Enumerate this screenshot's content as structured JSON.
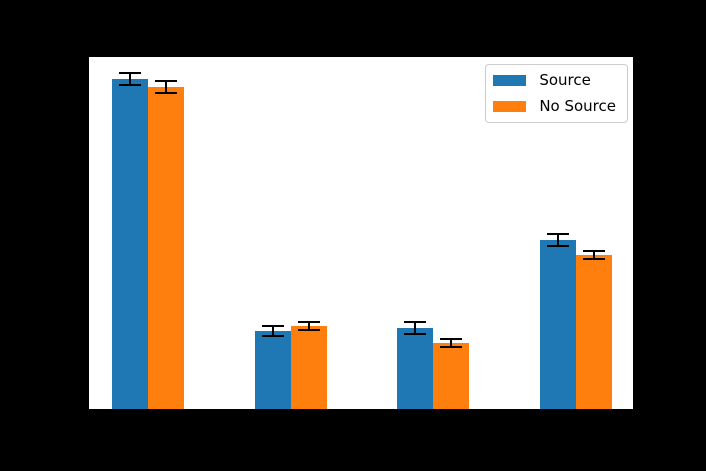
{
  "figure": {
    "background_color": "#000000",
    "plot_background_color": "#ffffff"
  },
  "chart_data": {
    "type": "bar",
    "n_groups": 4,
    "categories": [
      "",
      "",
      "",
      ""
    ],
    "series": [
      {
        "name": "Source",
        "color": "#1f77b4",
        "values": [
          0.938,
          0.226,
          0.234,
          0.483
        ],
        "errors": [
          0.021,
          0.018,
          0.02,
          0.021
        ]
      },
      {
        "name": "No Source",
        "color": "#ff7f0e",
        "values": [
          0.915,
          0.24,
          0.192,
          0.441
        ],
        "errors": [
          0.019,
          0.013,
          0.015,
          0.014
        ]
      }
    ],
    "ylim": [
      0,
      1.0
    ],
    "grid": false,
    "legend_position": "upper right",
    "error_bar_color": "#000000"
  }
}
